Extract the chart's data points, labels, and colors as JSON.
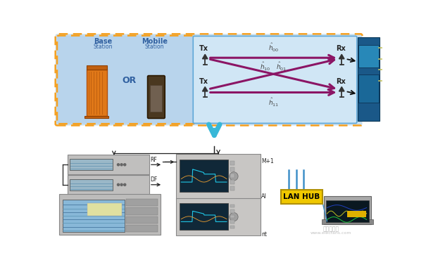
{
  "bg_color": "#ffffff",
  "orange_border": "#f5a020",
  "blue_fill_outer": "#c8dff0",
  "blue_fill_inner": "#b8d4ec",
  "blue_fill_channel": "#d0e6f5",
  "blue_border": "#60a8d8",
  "purple": "#8b1565",
  "cyan_arrow": "#38b8d8",
  "black": "#222222",
  "lanhub_yellow": "#f0c800",
  "label_base": "Base",
  "label_mobile": "Mobile",
  "label_or": "OR",
  "label_tx1": "Tx",
  "label_tx2": "Tx",
  "label_rx1": "Rx",
  "label_rx2": "Rx",
  "label_h00": "h",
  "label_h01": "h",
  "label_h10": "h",
  "label_h11": "h",
  "label_lanhub": "LAN HUB",
  "watermark": "www.elecfans.com"
}
